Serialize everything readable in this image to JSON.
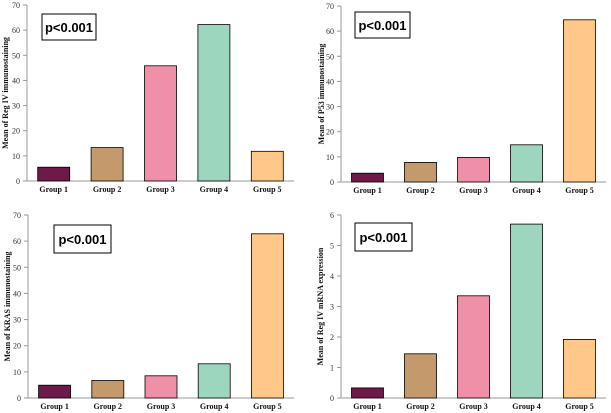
{
  "colors": {
    "bars": [
      "#6d1a4a",
      "#c49a6c",
      "#f08fa8",
      "#9dd6bf",
      "#ffc888"
    ],
    "axis": "#999999",
    "bar_stroke": "#000000"
  },
  "chart_data": [
    {
      "type": "bar",
      "categories": [
        "Group 1",
        "Group 2",
        "Group 3",
        "Group 4",
        "Group 5"
      ],
      "values": [
        5.5,
        13.3,
        45.8,
        62.2,
        11.8
      ],
      "ylabel": "Mean of Reg IV immunostaining",
      "ylim": [
        0,
        70
      ],
      "yticks": [
        0,
        10,
        20,
        30,
        40,
        50,
        60,
        70
      ],
      "annotation": "p<0.001",
      "grid": false
    },
    {
      "type": "bar",
      "categories": [
        "Group 1",
        "Group 2",
        "Group 3",
        "Group 4",
        "Group 5"
      ],
      "values": [
        3.5,
        7.8,
        9.8,
        14.8,
        64.5
      ],
      "ylabel": "Mean of P53 immunostaining",
      "ylim": [
        0,
        70
      ],
      "yticks": [
        0,
        10,
        20,
        30,
        40,
        50,
        60,
        70
      ],
      "annotation": "p<0.001",
      "grid": false
    },
    {
      "type": "bar",
      "categories": [
        "Group 1",
        "Group 2",
        "Group 3",
        "Group 4",
        "Group 5"
      ],
      "values": [
        4.9,
        6.7,
        8.5,
        13.1,
        62.8
      ],
      "ylabel": "Mean of KRAS immunostaining",
      "ylim": [
        0,
        70
      ],
      "yticks": [
        0,
        10,
        20,
        30,
        40,
        50,
        60,
        70
      ],
      "annotation": "p<0.001",
      "grid": false
    },
    {
      "type": "bar",
      "categories": [
        "Group 1",
        "Group 2",
        "Group 3",
        "Group 4",
        "Group 5"
      ],
      "values": [
        0.33,
        1.45,
        3.35,
        5.7,
        1.92
      ],
      "ylabel": "Mean of Reg IV mRNA expression",
      "ylim": [
        0,
        6
      ],
      "yticks": [
        0,
        1,
        2,
        3,
        4,
        5,
        6
      ],
      "annotation": "p<0.001",
      "grid": false
    }
  ]
}
